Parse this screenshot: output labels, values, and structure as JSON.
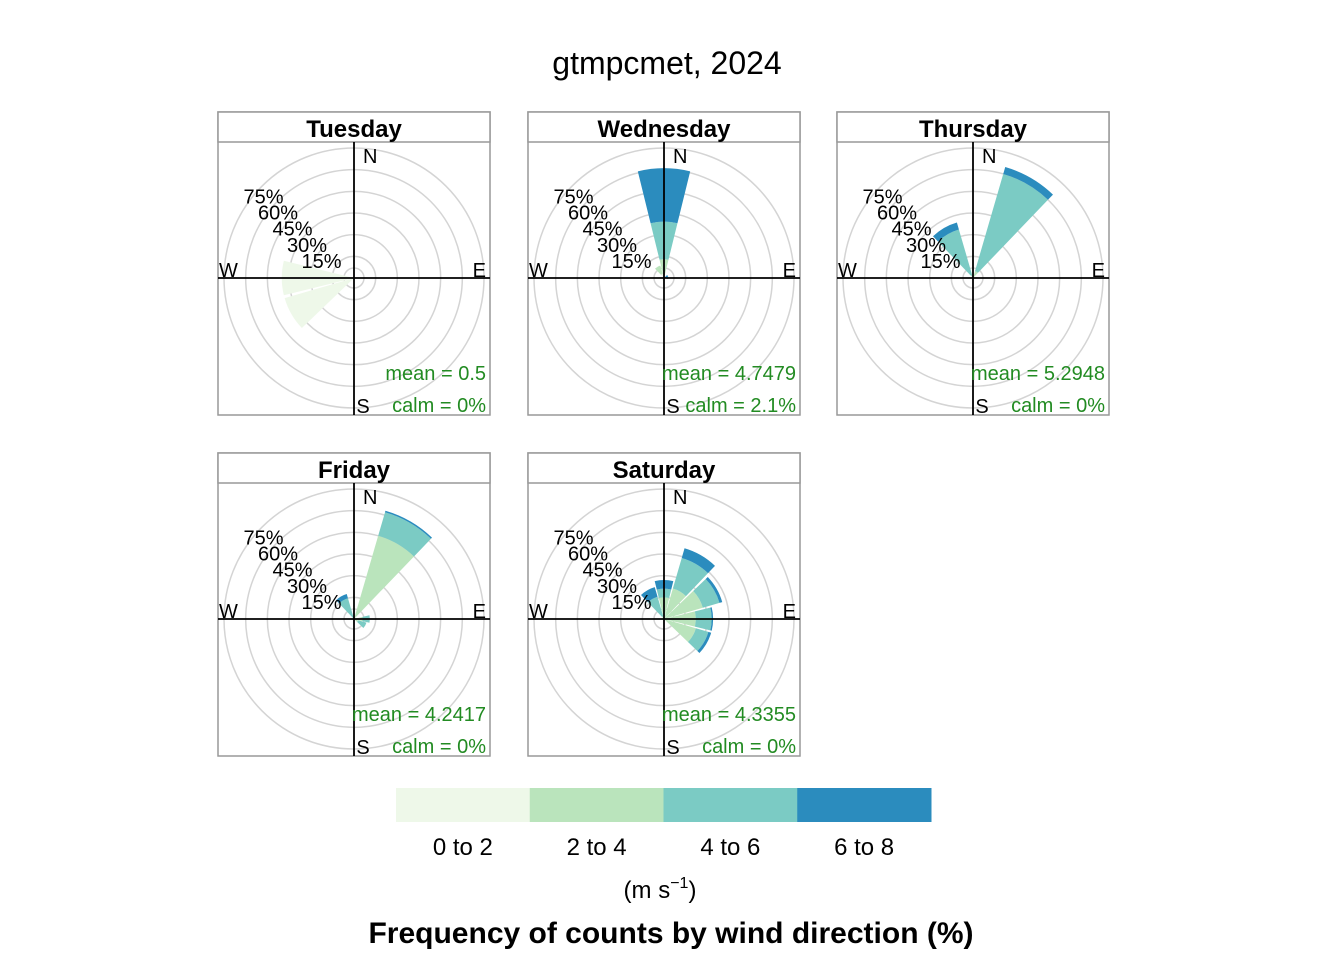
{
  "title": "gtmpcmet, 2024",
  "legend": {
    "ranges": [
      "0 to 2",
      "2 to 4",
      "4 to 6",
      "6 to 8"
    ],
    "colors": [
      "#EEF8E9",
      "#BAE4BC",
      "#7BCBC4",
      "#2B8CBE"
    ],
    "unit_base": "(m s",
    "unit_sup": "−1",
    "unit_close": ")",
    "caption": "Frequency of counts by wind direction (%)"
  },
  "chart_data": {
    "type": "windrose",
    "title": "gtmpcmet, 2024",
    "radial_ticks": [
      "15%",
      "30%",
      "45%",
      "60%",
      "75%"
    ],
    "radial_values": [
      15,
      30,
      45,
      60,
      75
    ],
    "radial_max": 90,
    "compass": {
      "n": "N",
      "e": "E",
      "s": "S",
      "w": "W"
    },
    "sector_width_deg": 30,
    "bins": [
      "0 to 2",
      "2 to 4",
      "4 to 6",
      "6 to 8"
    ],
    "panels": [
      {
        "label": "Tuesday",
        "mean": "mean = 0.5",
        "calm": "calm = 0%",
        "sectors": [
          {
            "dir": 270,
            "values": [
              50,
              0,
              0,
              0
            ]
          },
          {
            "dir": 240,
            "values": [
              50,
              0,
              0,
              0
            ]
          }
        ]
      },
      {
        "label": "Wednesday",
        "mean": "mean = 4.7479",
        "calm": "calm = 2.1%",
        "sectors": [
          {
            "dir": 0,
            "values": [
              1,
              12,
              26,
              37
            ]
          },
          {
            "dir": 330,
            "values": [
              3,
              6,
              0,
              0
            ]
          },
          {
            "dir": 60,
            "values": [
              1,
              0,
              0,
              2
            ]
          },
          {
            "dir": 90,
            "values": [
              1,
              0,
              0,
              2
            ]
          },
          {
            "dir": 210,
            "values": [
              2,
              0,
              0,
              0
            ]
          },
          {
            "dir": 180,
            "values": [
              1,
              0,
              0,
              0
            ]
          }
        ]
      },
      {
        "label": "Thursday",
        "mean": "mean = 5.2948",
        "calm": "calm = 0%",
        "sectors": [
          {
            "dir": 30,
            "values": [
              0,
              5,
              70,
              5
            ]
          },
          {
            "dir": 330,
            "values": [
              0,
              2,
              33,
              5
            ]
          }
        ]
      },
      {
        "label": "Friday",
        "mean": "mean = 4.2417",
        "calm": "calm = 0%",
        "sectors": [
          {
            "dir": 30,
            "values": [
              0,
              60,
              17,
              1
            ]
          },
          {
            "dir": 330,
            "values": [
              0,
              0,
              15,
              3
            ]
          },
          {
            "dir": 90,
            "values": [
              0,
              6,
              5,
              0
            ]
          },
          {
            "dir": 120,
            "values": [
              0,
              3,
              6,
              0
            ]
          }
        ]
      },
      {
        "label": "Saturday",
        "mean": "mean = 4.3355",
        "calm": "calm = 0%",
        "sectors": [
          {
            "dir": 30,
            "values": [
              0,
              22,
              22,
              7
            ]
          },
          {
            "dir": 0,
            "values": [
              0,
              15,
              6,
              6
            ]
          },
          {
            "dir": 60,
            "values": [
              0,
              28,
              12,
              2
            ]
          },
          {
            "dir": 90,
            "values": [
              0,
              22,
              11,
              1
            ]
          },
          {
            "dir": 120,
            "values": [
              0,
              23,
              9,
              2
            ]
          },
          {
            "dir": 330,
            "values": [
              0,
              2,
              14,
              7
            ]
          }
        ]
      }
    ]
  }
}
